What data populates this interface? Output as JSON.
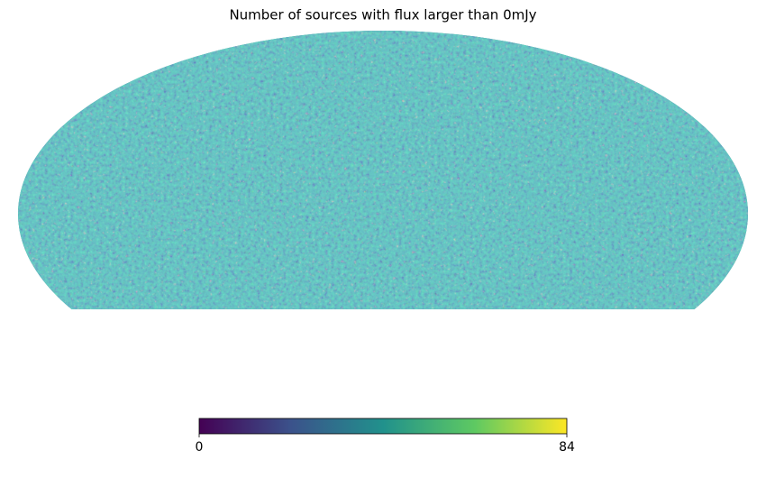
{
  "chart_data": {
    "type": "mollweide",
    "title": "Number of sources with flux larger than 0mJy",
    "colormap": [
      "#440154",
      "#3b528b",
      "#21918c",
      "#5ec962",
      "#fde725"
    ],
    "colorbar": {
      "lim": [
        0,
        84
      ],
      "ticks": [
        0,
        84
      ]
    }
  }
}
